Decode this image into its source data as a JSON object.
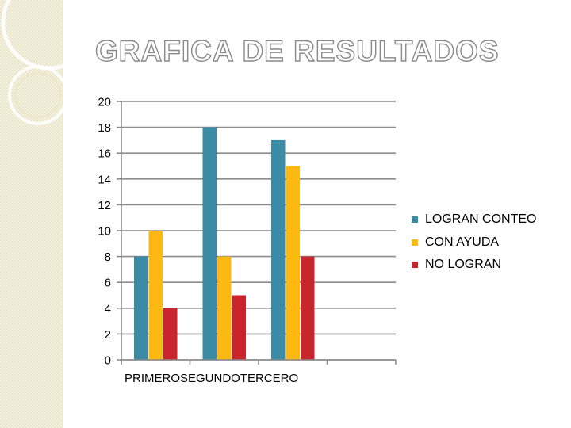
{
  "slide": {
    "title": "GRAFICA DE RESULTADOS"
  },
  "colors": {
    "background": "#ffffff",
    "side_strip": "#f4f1de",
    "grid": "#8c8c8c",
    "series": [
      "#3a8ba3",
      "#fdb811",
      "#c8262c"
    ]
  },
  "chart_data": {
    "type": "bar",
    "title": "",
    "xlabel": "",
    "ylabel": "",
    "categories": [
      "PRIMERO",
      "SEGUNDO",
      "TERCERO"
    ],
    "category_axis_label": "PRIMEROSEGUNDOTERCERO",
    "series": [
      {
        "name": "LOGRAN CONTEO",
        "values": [
          8,
          18,
          17
        ]
      },
      {
        "name": "CON AYUDA",
        "values": [
          10,
          8,
          15
        ]
      },
      {
        "name": "NO LOGRAN",
        "values": [
          4,
          5,
          8
        ]
      }
    ],
    "ylim": [
      0,
      20
    ],
    "y_ticks": [
      "0",
      "2",
      "4",
      "6",
      "8",
      "10",
      "12",
      "14",
      "16",
      "18",
      "20"
    ],
    "grid": true,
    "legend_position": "right"
  }
}
